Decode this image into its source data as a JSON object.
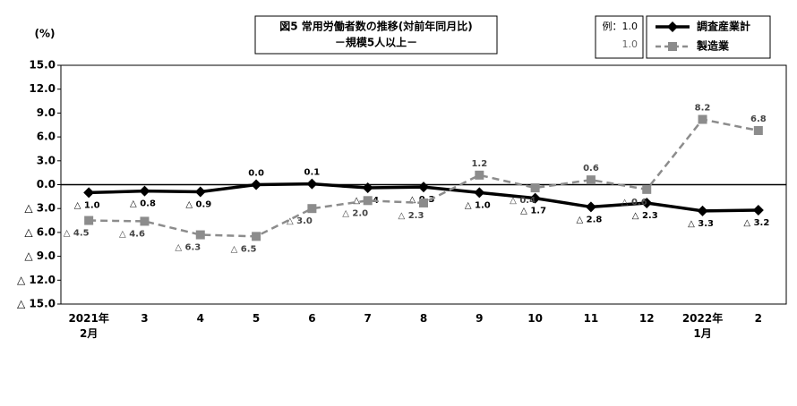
{
  "chart_data": {
    "type": "line",
    "title": "図5  常用労働者数の推移(対前年同月比)",
    "subtitle": "－規模5人以上－",
    "y_label": "(%)",
    "legend_example": [
      "例：1.0",
      "1.0"
    ],
    "categories": [
      "2021年\n2月",
      "3",
      "4",
      "5",
      "6",
      "7",
      "8",
      "9",
      "10",
      "11",
      "12",
      "2022年\n1月",
      "2"
    ],
    "series": [
      {
        "name": "調査産業計",
        "color": "#000000",
        "marker": "diamond",
        "dash": false,
        "values": [
          -1.0,
          -0.8,
          -0.9,
          0.0,
          0.1,
          -0.4,
          -0.3,
          -1.0,
          -1.7,
          -2.8,
          -2.3,
          -3.3,
          -3.2
        ],
        "value_labels": [
          "△ 1.0",
          "△ 0.8",
          "△ 0.9",
          "0.0",
          "0.1",
          "△ 0.4",
          "△ 0.3",
          "△ 1.0",
          "△ 1.7",
          "△ 2.8",
          "△ 2.3",
          "△ 3.3",
          "△ 3.2"
        ]
      },
      {
        "name": "製造業",
        "color": "#8c8c8c",
        "marker": "square",
        "dash": true,
        "values": [
          -4.5,
          -4.6,
          -6.3,
          -6.5,
          -3.0,
          -2.0,
          -2.3,
          1.2,
          -0.4,
          0.6,
          -0.6,
          8.2,
          6.8
        ],
        "value_labels": [
          "△ 4.5",
          "△ 4.6",
          "△ 6.3",
          "△ 6.5",
          "△ 3.0",
          "△ 2.0",
          "△ 2.3",
          "1.2",
          "△ 0.4",
          "0.6",
          "△ 0.6",
          "8.2",
          "6.8"
        ]
      }
    ],
    "ylim": [
      -15,
      15
    ],
    "yticks": [
      {
        "value": 15,
        "label": "15.0"
      },
      {
        "value": 12,
        "label": "12.0"
      },
      {
        "value": 9,
        "label": "9.0"
      },
      {
        "value": 6,
        "label": "6.0"
      },
      {
        "value": 3,
        "label": "3.0"
      },
      {
        "value": 0,
        "label": "0.0"
      },
      {
        "value": -3,
        "label": "△ 3.0"
      },
      {
        "value": -6,
        "label": "△ 6.0"
      },
      {
        "value": -9,
        "label": "△ 9.0"
      },
      {
        "value": -12,
        "label": "△ 12.0"
      },
      {
        "value": -15,
        "label": "△ 15.0"
      }
    ],
    "grid": false
  }
}
